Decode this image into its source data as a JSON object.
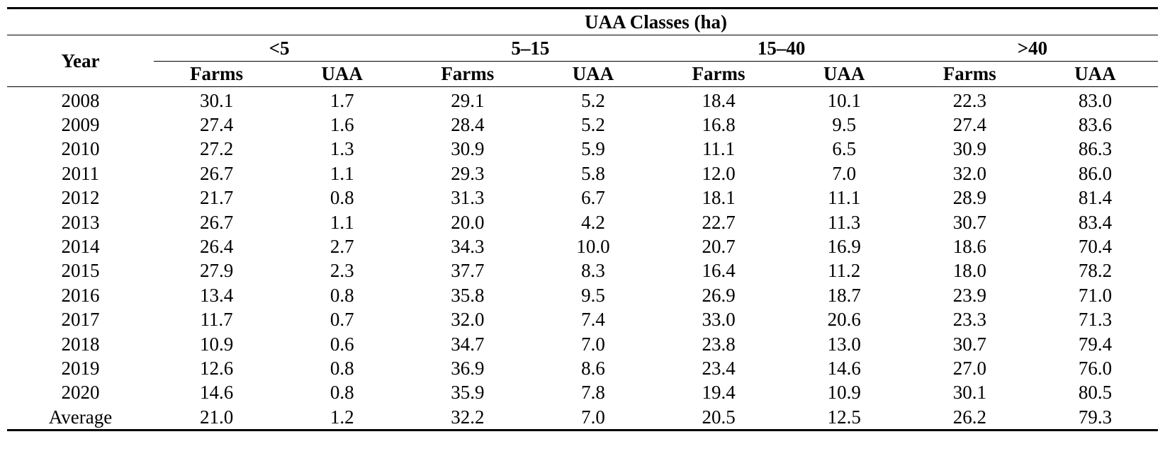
{
  "table": {
    "group_header": "UAA Classes (ha)",
    "year_header": "Year",
    "classes": [
      "<5",
      "5–15",
      "15–40",
      ">40"
    ],
    "sub_headers": [
      "Farms",
      "UAA"
    ],
    "rows": [
      {
        "year": "2008",
        "values": [
          "30.1",
          "1.7",
          "29.1",
          "5.2",
          "18.4",
          "10.1",
          "22.3",
          "83.0"
        ]
      },
      {
        "year": "2009",
        "values": [
          "27.4",
          "1.6",
          "28.4",
          "5.2",
          "16.8",
          "9.5",
          "27.4",
          "83.6"
        ]
      },
      {
        "year": "2010",
        "values": [
          "27.2",
          "1.3",
          "30.9",
          "5.9",
          "11.1",
          "6.5",
          "30.9",
          "86.3"
        ]
      },
      {
        "year": "2011",
        "values": [
          "26.7",
          "1.1",
          "29.3",
          "5.8",
          "12.0",
          "7.0",
          "32.0",
          "86.0"
        ]
      },
      {
        "year": "2012",
        "values": [
          "21.7",
          "0.8",
          "31.3",
          "6.7",
          "18.1",
          "11.1",
          "28.9",
          "81.4"
        ]
      },
      {
        "year": "2013",
        "values": [
          "26.7",
          "1.1",
          "20.0",
          "4.2",
          "22.7",
          "11.3",
          "30.7",
          "83.4"
        ]
      },
      {
        "year": "2014",
        "values": [
          "26.4",
          "2.7",
          "34.3",
          "10.0",
          "20.7",
          "16.9",
          "18.6",
          "70.4"
        ]
      },
      {
        "year": "2015",
        "values": [
          "27.9",
          "2.3",
          "37.7",
          "8.3",
          "16.4",
          "11.2",
          "18.0",
          "78.2"
        ]
      },
      {
        "year": "2016",
        "values": [
          "13.4",
          "0.8",
          "35.8",
          "9.5",
          "26.9",
          "18.7",
          "23.9",
          "71.0"
        ]
      },
      {
        "year": "2017",
        "values": [
          "11.7",
          "0.7",
          "32.0",
          "7.4",
          "33.0",
          "20.6",
          "23.3",
          "71.3"
        ]
      },
      {
        "year": "2018",
        "values": [
          "10.9",
          "0.6",
          "34.7",
          "7.0",
          "23.8",
          "13.0",
          "30.7",
          "79.4"
        ]
      },
      {
        "year": "2019",
        "values": [
          "12.6",
          "0.8",
          "36.9",
          "8.6",
          "23.4",
          "14.6",
          "27.0",
          "76.0"
        ]
      },
      {
        "year": "2020",
        "values": [
          "14.6",
          "0.8",
          "35.9",
          "7.8",
          "19.4",
          "10.9",
          "30.1",
          "80.5"
        ]
      },
      {
        "year": "Average",
        "values": [
          "21.0",
          "1.2",
          "32.2",
          "7.0",
          "20.5",
          "12.5",
          "26.2",
          "79.3"
        ]
      }
    ]
  }
}
